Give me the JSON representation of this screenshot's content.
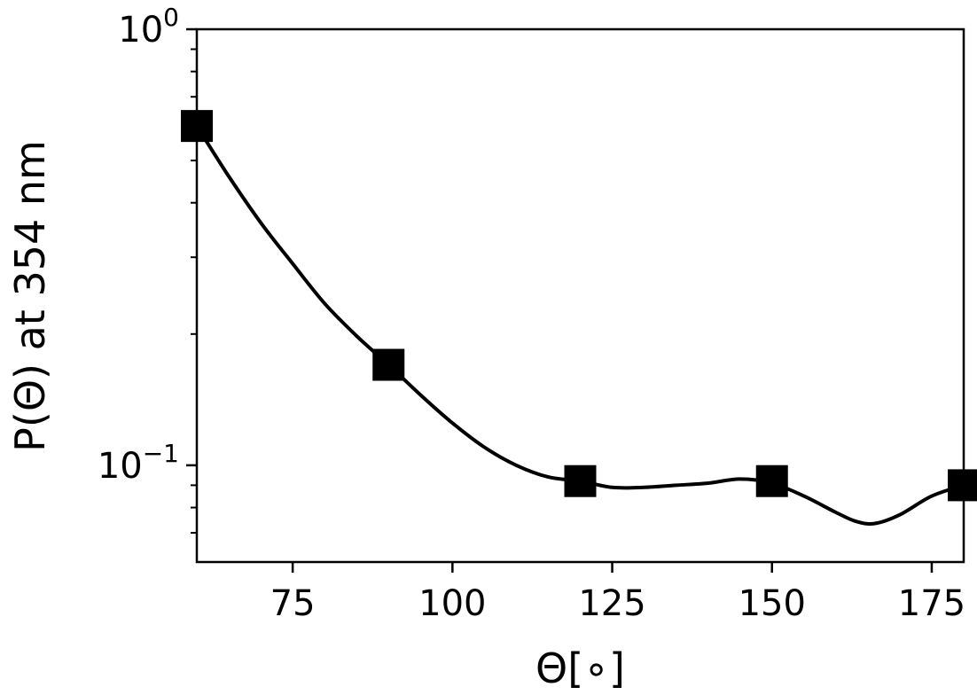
{
  "chart_data": {
    "type": "scatter",
    "title": "",
    "xlabel": "Θ[∘]",
    "ylabel": "P(Θ) at 354 nm",
    "x_scale": "linear",
    "y_scale": "log",
    "xlim": [
      60,
      180
    ],
    "ylim": [
      0.06,
      1.0
    ],
    "grid": false,
    "legend": "none",
    "x_ticks": [
      {
        "value": 75,
        "label": "75"
      },
      {
        "value": 100,
        "label": "100"
      },
      {
        "value": 125,
        "label": "125"
      },
      {
        "value": 150,
        "label": "150"
      },
      {
        "value": 175,
        "label": "175"
      }
    ],
    "y_ticks": [
      {
        "value": 1.0,
        "base": "10",
        "exp": "0"
      },
      {
        "value": 0.1,
        "base": "10",
        "exp": "−1"
      }
    ],
    "series": [
      {
        "marker": "square",
        "x": [
          60,
          90,
          120,
          150,
          180
        ],
        "y": [
          0.6,
          0.17,
          0.092,
          0.092,
          0.09
        ]
      }
    ],
    "fit_curve": {
      "style": "smooth-line",
      "x": [
        60,
        65,
        70,
        75,
        80,
        85,
        90,
        95,
        100,
        105,
        110,
        115,
        120,
        125,
        130,
        135,
        140,
        145,
        150,
        155,
        160,
        163,
        166,
        170,
        175,
        180
      ],
      "y": [
        0.6,
        0.46,
        0.36,
        0.29,
        0.235,
        0.198,
        0.17,
        0.145,
        0.125,
        0.11,
        0.1,
        0.094,
        0.092,
        0.089,
        0.089,
        0.09,
        0.091,
        0.093,
        0.091,
        0.085,
        0.078,
        0.0745,
        0.0735,
        0.077,
        0.085,
        0.09
      ]
    },
    "colors": {
      "marker": "#000000",
      "line": "#000000",
      "axes": "#000000"
    }
  }
}
